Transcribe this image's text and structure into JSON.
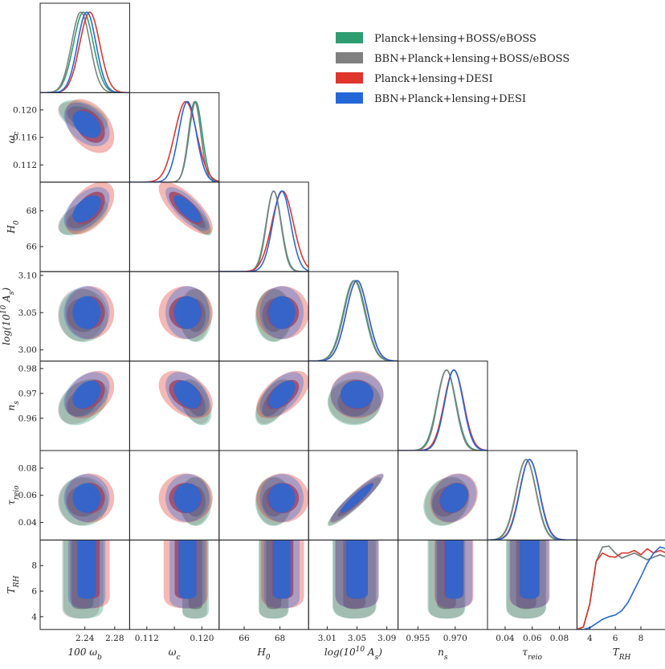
{
  "chart_data": {
    "type": "triangle",
    "parameters": [
      {
        "key": "wb",
        "label": "100 ω_b",
        "range": [
          2.18,
          2.3
        ],
        "ticks": [
          2.24,
          2.28
        ],
        "tick_labels": [
          "2.24",
          "2.28"
        ]
      },
      {
        "key": "wc",
        "label": "ω_c",
        "range": [
          0.1095,
          0.1225
        ],
        "ticks": [
          0.112,
          0.116,
          0.12
        ],
        "tick_labels": [
          "0.112",
          "0.116",
          "0.120"
        ],
        "x_tick_labels": [
          "0.112",
          "",
          "0.120"
        ]
      },
      {
        "key": "H0",
        "label": "H_0",
        "range": [
          64.6,
          69.6
        ],
        "ticks": [
          66,
          68
        ],
        "tick_labels": [
          "66",
          "68"
        ]
      },
      {
        "key": "As",
        "label": "log(10^10 A_s)",
        "range": [
          2.985,
          3.105
        ],
        "ticks": [
          3.0,
          3.05,
          3.1
        ],
        "tick_labels": [
          "3.00",
          "3.05",
          "3.10"
        ],
        "x_ticks": [
          3.01,
          3.05,
          3.09
        ],
        "x_tick_labels": [
          "3.01",
          "3.05",
          "3.09"
        ]
      },
      {
        "key": "ns",
        "label": "n_s",
        "range": [
          0.947,
          0.983
        ],
        "ticks": [
          0.96,
          0.97,
          0.98
        ],
        "tick_labels": [
          "0.96",
          "0.97",
          "0.98"
        ],
        "x_ticks": [
          0.955,
          0.97
        ],
        "x_tick_labels": [
          "0.955",
          "0.970"
        ]
      },
      {
        "key": "tau",
        "label": "τ_reio",
        "range": [
          0.027,
          0.093
        ],
        "ticks": [
          0.04,
          0.06,
          0.08
        ],
        "tick_labels": [
          "0.04",
          "0.06",
          "0.08"
        ]
      },
      {
        "key": "TRH",
        "label": "T_RH",
        "range": [
          3,
          10
        ],
        "ticks": [
          4,
          6,
          8
        ],
        "tick_labels": [
          "4",
          "6",
          "8"
        ]
      }
    ],
    "series": [
      {
        "name": "Planck+lensing+BOSS/eBOSS",
        "color": "#2e9e70",
        "mean": [
          2.238,
          0.1191,
          67.65,
          3.046,
          0.9665,
          0.0555
        ],
        "sd": [
          0.0134,
          0.00095,
          0.42,
          0.0145,
          0.0038,
          0.0074
        ],
        "corr": {
          "wb-wc": -0.45,
          "wb-H0": 0.55,
          "wc-H0": -0.8,
          "H0-ns": 0.55,
          "wb-ns": 0.35,
          "As-tau": 0.93,
          "ns-tau": 0.2,
          "wc-ns": -0.4
        }
      },
      {
        "name": "BBN+Planck+lensing+BOSS/eBOSS",
        "color": "#808080",
        "mean": [
          2.2345,
          0.11895,
          67.65,
          3.047,
          0.9665,
          0.0555
        ],
        "sd": [
          0.0125,
          0.0009,
          0.4,
          0.0145,
          0.0036,
          0.0072
        ],
        "corr": {
          "wb-wc": -0.45,
          "wb-H0": 0.55,
          "wc-H0": -0.8,
          "H0-ns": 0.55,
          "wb-ns": 0.35,
          "As-tau": 0.93,
          "ns-tau": 0.2,
          "wc-ns": -0.4
        }
      },
      {
        "name": "Planck+lensing+DESI",
        "color": "#e0352b",
        "mean": [
          2.2465,
          0.11765,
          68.15,
          3.05,
          0.9695,
          0.058
        ],
        "sd": [
          0.0134,
          0.0016,
          0.6,
          0.0145,
          0.0039,
          0.0074
        ],
        "corr": {
          "wb-wc": -0.4,
          "wb-H0": 0.5,
          "wc-H0": -0.75,
          "H0-ns": 0.55,
          "wb-ns": 0.35,
          "As-tau": 0.93,
          "ns-tau": 0.2,
          "wc-ns": -0.4
        }
      },
      {
        "name": "BBN+Planck+lensing+DESI",
        "color": "#2468d8",
        "mean": [
          2.2425,
          0.1179,
          68.1,
          3.05,
          0.9695,
          0.058
        ],
        "sd": [
          0.0125,
          0.0013,
          0.5,
          0.0145,
          0.0037,
          0.0072
        ],
        "corr": {
          "wb-wc": -0.4,
          "wb-H0": 0.5,
          "wc-H0": -0.75,
          "H0-ns": 0.55,
          "wb-ns": 0.35,
          "As-tau": 0.93,
          "ns-tau": 0.2,
          "wc-ns": -0.4
        }
      }
    ],
    "TRH_posteriors": [
      {
        "series": [
          0,
          1
        ],
        "x": [
          3,
          3.5,
          4,
          4.5,
          5,
          5.5,
          6,
          6.5,
          7,
          7.5,
          8,
          8.5,
          9,
          9.5,
          10
        ],
        "y": [
          0,
          0.03,
          0.3,
          0.8,
          0.97,
          0.98,
          0.9,
          0.84,
          0.87,
          0.9,
          0.86,
          0.82,
          0.85,
          0.88,
          0.85
        ]
      },
      {
        "series": [
          2
        ],
        "x": [
          3,
          3.5,
          4,
          4.5,
          5,
          5.5,
          6,
          6.5,
          7,
          7.5,
          8,
          8.5,
          9,
          9.5,
          10
        ],
        "y": [
          0,
          0.03,
          0.3,
          0.8,
          0.9,
          0.86,
          0.85,
          0.9,
          0.9,
          0.93,
          0.88,
          0.95,
          0.9,
          0.93,
          0.9
        ]
      },
      {
        "series": [
          3
        ],
        "x": [
          3,
          3.5,
          4,
          4.5,
          5,
          5.5,
          6,
          6.5,
          7,
          7.5,
          8,
          8.5,
          9,
          9.5,
          10
        ],
        "y": [
          0,
          0,
          0.02,
          0.07,
          0.12,
          0.15,
          0.17,
          0.22,
          0.32,
          0.47,
          0.62,
          0.78,
          0.9,
          0.97,
          0.95
        ]
      }
    ],
    "grid": false,
    "legend_position": "top-right"
  },
  "legend": {
    "title": "",
    "items": [
      {
        "label": "Planck+lensing+BOSS/eBOSS",
        "color": "#2e9e70"
      },
      {
        "label": "BBN+Planck+lensing+BOSS/eBOSS",
        "color": "#808080"
      },
      {
        "label": "Planck+lensing+DESI",
        "color": "#e0352b"
      },
      {
        "label": "BBN+Planck+lensing+DESI",
        "color": "#2468d8"
      }
    ]
  }
}
